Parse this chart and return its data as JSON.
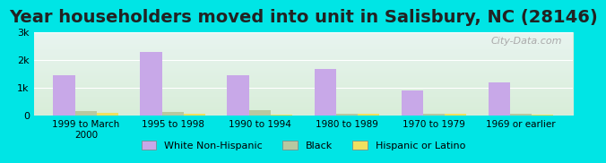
{
  "title": "Year householders moved into unit in Salisbury, NC (28146)",
  "categories": [
    "1999 to March\n2000",
    "1995 to 1998",
    "1990 to 1994",
    "1980 to 1989",
    "1970 to 1979",
    "1969 or earlier"
  ],
  "white": [
    1450,
    2280,
    1450,
    1680,
    900,
    1200
  ],
  "black": [
    150,
    145,
    200,
    80,
    80,
    55
  ],
  "hispanic": [
    100,
    60,
    20,
    50,
    55,
    30
  ],
  "white_color": "#c8a8e8",
  "black_color": "#b8c8a0",
  "hispanic_color": "#f0e060",
  "bg_outer": "#00e5e5",
  "bg_plot_top": "#e8f4f0",
  "bg_plot_bottom": "#d8edd8",
  "title_fontsize": 14,
  "ylim": [
    0,
    3000
  ],
  "yticks": [
    0,
    1000,
    2000,
    3000
  ],
  "ytick_labels": [
    "0",
    "1k",
    "2k",
    "3k"
  ],
  "bar_width": 0.25,
  "legend_labels": [
    "White Non-Hispanic",
    "Black",
    "Hispanic or Latino"
  ]
}
